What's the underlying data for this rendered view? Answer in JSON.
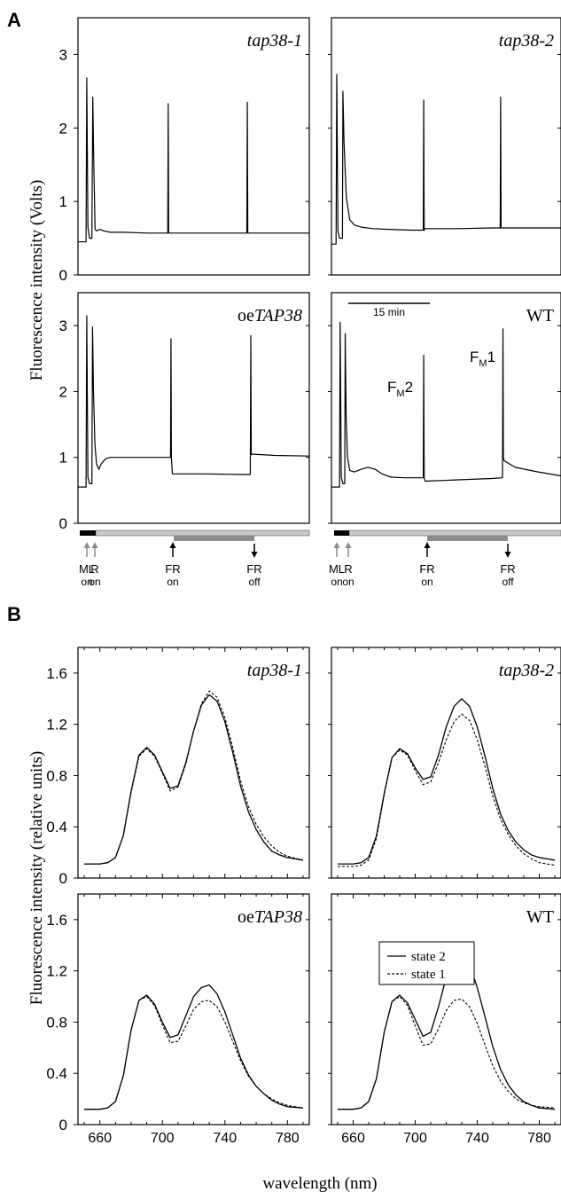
{
  "figure": {
    "panel_a_letter": "A",
    "panel_b_letter": "B",
    "panel_a_ylabel": "Fluorescence intensity (Volts)",
    "panel_b_ylabel": "Fluorescence intensity (relative units)",
    "panel_b_xlabel": "wavelength (nm)",
    "scale_bar_label": "15 min",
    "colors": {
      "axis": "#000000",
      "trace": "#000000",
      "dark_bar": "#000000",
      "red_bar": "#c8c8c8",
      "farred_bar": "#8c8c8c",
      "grey_arrow": "#8c8c8c"
    },
    "light_events": [
      {
        "top": "ML",
        "bottom": "on",
        "arrow": "up",
        "arrow_color": "grey"
      },
      {
        "top": "R",
        "bottom": "on",
        "arrow": "up",
        "arrow_color": "grey"
      },
      {
        "top": "FR",
        "bottom": "on",
        "arrow": "up",
        "arrow_color": "black"
      },
      {
        "top": "FR",
        "bottom": "off",
        "arrow": "down",
        "arrow_color": "black"
      }
    ],
    "peak_labels": {
      "fm2": {
        "main": "F",
        "sub": "M",
        "num": "2"
      },
      "fm1": {
        "main": "F",
        "sub": "M",
        "num": "1"
      }
    }
  },
  "chart_data": [
    {
      "type": "line",
      "panel": "A",
      "title": "tap38-1",
      "title_parts": {
        "prefix": "",
        "italic": "tap38-1"
      },
      "ylim": [
        0,
        3.5
      ],
      "yticks": [
        0,
        1,
        2,
        3
      ],
      "xlim": [
        0,
        100
      ],
      "x": [
        0,
        3.5,
        3.8,
        4.3,
        5,
        6,
        6.4,
        6.8,
        7.4,
        8.1,
        9.5,
        11,
        14,
        20,
        30,
        40,
        38.8,
        39,
        39.2,
        39.5,
        55,
        73,
        73.2,
        73.4,
        73.7,
        80,
        90,
        100
      ],
      "y": [
        0.45,
        0.45,
        2.68,
        0.65,
        0.5,
        0.5,
        2.42,
        1.6,
        0.62,
        0.6,
        0.62,
        0.6,
        0.58,
        0.58,
        0.57,
        0.57,
        0.57,
        2.33,
        0.57,
        0.57,
        0.57,
        0.57,
        2.35,
        0.57,
        0.57,
        0.57,
        0.57,
        0.57
      ],
      "series": [
        {
          "style": "solid"
        }
      ]
    },
    {
      "type": "line",
      "panel": "A",
      "title": "tap38-2",
      "title_parts": {
        "prefix": "",
        "italic": "tap38-2"
      },
      "ylim": [
        0,
        3.5
      ],
      "yticks": [
        0,
        1,
        2,
        3
      ],
      "xlim": [
        0,
        100
      ],
      "x": [
        0,
        2,
        2.3,
        2.8,
        3.5,
        4.8,
        5,
        5.5,
        6.5,
        8,
        10,
        13,
        18,
        25,
        35,
        38,
        40,
        40.2,
        40.4,
        40.7,
        55,
        70,
        73.5,
        73.7,
        73.9,
        74.2,
        85,
        100
      ],
      "y": [
        0.42,
        0.42,
        2.73,
        0.6,
        0.5,
        0.5,
        2.5,
        1.8,
        1.05,
        0.75,
        0.68,
        0.65,
        0.63,
        0.62,
        0.61,
        0.61,
        0.61,
        2.38,
        0.61,
        0.63,
        0.63,
        0.64,
        0.64,
        2.42,
        0.64,
        0.64,
        0.64,
        0.64
      ],
      "series": [
        {
          "style": "solid"
        }
      ]
    },
    {
      "type": "line",
      "panel": "A",
      "title": "oeTAP38",
      "title_parts": {
        "prefix": "oe",
        "italic": "TAP38"
      },
      "ylim": [
        0,
        3.5
      ],
      "yticks": [
        0,
        1,
        2,
        3
      ],
      "xlim": [
        0,
        100
      ],
      "x": [
        0,
        3.5,
        3.8,
        4.3,
        5,
        6,
        6.3,
        6.7,
        7.3,
        8,
        9,
        10,
        12,
        14,
        18,
        25,
        35,
        40,
        40.2,
        40.4,
        40.8,
        55,
        70,
        74.5,
        74.7,
        74.9,
        75.2,
        85,
        100
      ],
      "y": [
        0.55,
        0.55,
        3.15,
        0.7,
        0.6,
        0.6,
        2.98,
        2.0,
        1.2,
        0.9,
        0.82,
        0.9,
        0.98,
        1.0,
        1.0,
        1.0,
        1.0,
        1.0,
        2.8,
        1.0,
        0.75,
        0.75,
        0.74,
        0.74,
        2.85,
        1.04,
        1.05,
        1.03,
        1.02
      ],
      "series": [
        {
          "style": "solid"
        }
      ]
    },
    {
      "type": "line",
      "panel": "A",
      "title": "WT",
      "title_parts": {
        "prefix": "WT",
        "italic": ""
      },
      "ylim": [
        0,
        3.5
      ],
      "yticks": [
        0,
        1,
        2,
        3
      ],
      "xlim": [
        0,
        100
      ],
      "x": [
        0,
        3.5,
        3.8,
        4.3,
        5,
        5.8,
        6,
        6.4,
        7,
        8,
        10,
        13,
        16,
        19,
        22,
        26,
        32,
        40,
        40.2,
        40.4,
        40.8,
        55,
        70,
        74.5,
        74.7,
        74.9,
        75.2,
        80,
        90,
        100
      ],
      "y": [
        0.55,
        0.55,
        3.05,
        0.7,
        0.6,
        0.6,
        2.88,
        1.6,
        1.0,
        0.8,
        0.78,
        0.82,
        0.85,
        0.82,
        0.75,
        0.7,
        0.69,
        0.69,
        2.55,
        0.69,
        0.64,
        0.66,
        0.68,
        0.69,
        2.95,
        1.0,
        0.95,
        0.85,
        0.78,
        0.72
      ],
      "series": [
        {
          "style": "solid"
        }
      ]
    },
    {
      "type": "line",
      "panel": "B",
      "title": "tap38-1",
      "title_parts": {
        "prefix": "",
        "italic": "tap38-1"
      },
      "xlim": [
        646,
        794
      ],
      "ylim": [
        0,
        1.8
      ],
      "xticks": [
        660,
        700,
        740,
        780
      ],
      "yticks": [
        0,
        0.4,
        0.8,
        1.2,
        1.6
      ],
      "x": [
        650,
        660,
        665,
        670,
        675,
        680,
        685,
        690,
        695,
        700,
        705,
        710,
        715,
        720,
        725,
        730,
        735,
        740,
        745,
        750,
        755,
        760,
        765,
        770,
        775,
        780,
        790
      ],
      "series": [
        {
          "name": "state 2",
          "style": "solid",
          "values": [
            0.11,
            0.11,
            0.12,
            0.16,
            0.33,
            0.68,
            0.96,
            1.02,
            0.96,
            0.83,
            0.7,
            0.72,
            0.9,
            1.15,
            1.35,
            1.43,
            1.38,
            1.22,
            0.98,
            0.72,
            0.52,
            0.38,
            0.28,
            0.21,
            0.18,
            0.16,
            0.14
          ]
        },
        {
          "name": "state 1",
          "style": "dashed",
          "values": [
            0.11,
            0.11,
            0.12,
            0.16,
            0.33,
            0.67,
            0.95,
            1.01,
            0.95,
            0.82,
            0.68,
            0.71,
            0.89,
            1.15,
            1.36,
            1.46,
            1.41,
            1.25,
            1.02,
            0.76,
            0.56,
            0.42,
            0.32,
            0.25,
            0.2,
            0.17,
            0.14
          ]
        }
      ]
    },
    {
      "type": "line",
      "panel": "B",
      "title": "tap38-2",
      "title_parts": {
        "prefix": "",
        "italic": "tap38-2"
      },
      "xlim": [
        646,
        794
      ],
      "ylim": [
        0,
        1.8
      ],
      "xticks": [
        660,
        700,
        740,
        780
      ],
      "yticks": [
        0,
        0.4,
        0.8,
        1.2,
        1.6
      ],
      "x": [
        650,
        660,
        665,
        670,
        675,
        680,
        685,
        690,
        695,
        700,
        705,
        710,
        715,
        720,
        725,
        730,
        735,
        740,
        745,
        750,
        755,
        760,
        765,
        770,
        775,
        780,
        790
      ],
      "series": [
        {
          "name": "state 2",
          "style": "solid",
          "values": [
            0.11,
            0.11,
            0.12,
            0.16,
            0.33,
            0.66,
            0.94,
            1.01,
            0.97,
            0.86,
            0.77,
            0.79,
            0.96,
            1.18,
            1.34,
            1.4,
            1.34,
            1.18,
            0.95,
            0.7,
            0.5,
            0.37,
            0.28,
            0.22,
            0.18,
            0.16,
            0.14
          ]
        },
        {
          "name": "state 1",
          "style": "dashed",
          "values": [
            0.09,
            0.09,
            0.1,
            0.14,
            0.31,
            0.65,
            0.94,
            1.0,
            0.96,
            0.84,
            0.73,
            0.75,
            0.9,
            1.08,
            1.22,
            1.28,
            1.23,
            1.08,
            0.87,
            0.64,
            0.46,
            0.34,
            0.25,
            0.19,
            0.15,
            0.12,
            0.1
          ]
        }
      ]
    },
    {
      "type": "line",
      "panel": "B",
      "title": "oeTAP38",
      "title_parts": {
        "prefix": "oe",
        "italic": "TAP38"
      },
      "xlim": [
        646,
        794
      ],
      "ylim": [
        0,
        1.8
      ],
      "xticks": [
        660,
        700,
        740,
        780
      ],
      "yticks": [
        0,
        0.4,
        0.8,
        1.2,
        1.6
      ],
      "x": [
        650,
        660,
        665,
        670,
        675,
        680,
        685,
        690,
        695,
        700,
        705,
        710,
        715,
        720,
        725,
        730,
        735,
        740,
        745,
        750,
        755,
        760,
        765,
        770,
        775,
        780,
        790
      ],
      "series": [
        {
          "name": "state 2",
          "style": "solid",
          "values": [
            0.12,
            0.12,
            0.13,
            0.18,
            0.38,
            0.74,
            0.97,
            1.01,
            0.94,
            0.8,
            0.68,
            0.7,
            0.85,
            1.0,
            1.07,
            1.09,
            1.02,
            0.88,
            0.7,
            0.52,
            0.39,
            0.3,
            0.24,
            0.19,
            0.16,
            0.14,
            0.13
          ]
        },
        {
          "name": "state 1",
          "style": "dashed",
          "values": [
            0.12,
            0.12,
            0.13,
            0.18,
            0.38,
            0.74,
            0.97,
            1.0,
            0.93,
            0.78,
            0.64,
            0.65,
            0.77,
            0.9,
            0.96,
            0.97,
            0.92,
            0.8,
            0.65,
            0.5,
            0.38,
            0.3,
            0.24,
            0.2,
            0.17,
            0.15,
            0.13
          ]
        }
      ]
    },
    {
      "type": "line",
      "panel": "B",
      "title": "WT",
      "title_parts": {
        "prefix": "WT",
        "italic": ""
      },
      "xlim": [
        646,
        794
      ],
      "ylim": [
        0,
        1.8
      ],
      "xticks": [
        660,
        700,
        740,
        780
      ],
      "yticks": [
        0,
        0.4,
        0.8,
        1.2,
        1.6
      ],
      "legend": "top-left",
      "x": [
        650,
        660,
        665,
        670,
        675,
        680,
        685,
        690,
        695,
        700,
        705,
        710,
        715,
        720,
        725,
        730,
        735,
        740,
        745,
        750,
        755,
        760,
        765,
        770,
        775,
        780,
        790
      ],
      "series": [
        {
          "name": "state 2",
          "style": "solid",
          "values": [
            0.12,
            0.12,
            0.13,
            0.18,
            0.36,
            0.72,
            0.96,
            1.01,
            0.95,
            0.82,
            0.69,
            0.72,
            0.92,
            1.15,
            1.29,
            1.33,
            1.25,
            1.07,
            0.84,
            0.61,
            0.43,
            0.31,
            0.23,
            0.18,
            0.15,
            0.13,
            0.12
          ]
        },
        {
          "name": "state 1",
          "style": "dashed",
          "values": [
            0.12,
            0.12,
            0.13,
            0.18,
            0.36,
            0.72,
            0.96,
            1.0,
            0.93,
            0.77,
            0.62,
            0.63,
            0.75,
            0.89,
            0.97,
            0.98,
            0.92,
            0.79,
            0.62,
            0.46,
            0.34,
            0.26,
            0.2,
            0.17,
            0.15,
            0.14,
            0.13
          ]
        }
      ]
    }
  ]
}
